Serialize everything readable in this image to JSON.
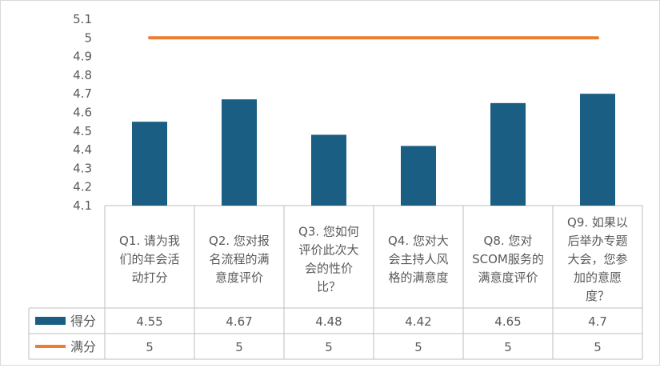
{
  "chart_data": {
    "type": "bar",
    "title": "",
    "xlabel": "",
    "ylabel": "",
    "ylim": [
      4.1,
      5.1
    ],
    "yticks": [
      "4.1",
      "4.2",
      "4.3",
      "4.4",
      "4.5",
      "4.6",
      "4.7",
      "4.8",
      "4.9",
      "5",
      "5.1"
    ],
    "grid": false,
    "legend": "data-table",
    "categories": [
      [
        "Q1. 请为我",
        "们的年会活",
        "动打分"
      ],
      [
        "Q2. 您对报",
        "名流程的满",
        "意度评价"
      ],
      [
        "Q3. 您如何",
        "评价此次大",
        "会的性价",
        "比？"
      ],
      [
        "Q4. 您对大",
        "会主持人风",
        "格的满意度"
      ],
      [
        "Q8. 您对",
        "SCOM服务的",
        "满意度评价"
      ],
      [
        "Q9. 如果以",
        "后举办专题",
        "大会，您参",
        "加的意愿",
        "度？"
      ]
    ],
    "series": [
      {
        "name": "得分",
        "type": "bar",
        "color": "#1b5e84",
        "values": [
          4.55,
          4.67,
          4.48,
          4.42,
          4.65,
          4.7
        ],
        "labels": [
          "4.55",
          "4.67",
          "4.48",
          "4.42",
          "4.65",
          "4.7"
        ]
      },
      {
        "name": "满分",
        "type": "line",
        "color": "#ed7d31",
        "values": [
          5,
          5,
          5,
          5,
          5,
          5
        ],
        "labels": [
          "5",
          "5",
          "5",
          "5",
          "5",
          "5"
        ]
      }
    ]
  }
}
